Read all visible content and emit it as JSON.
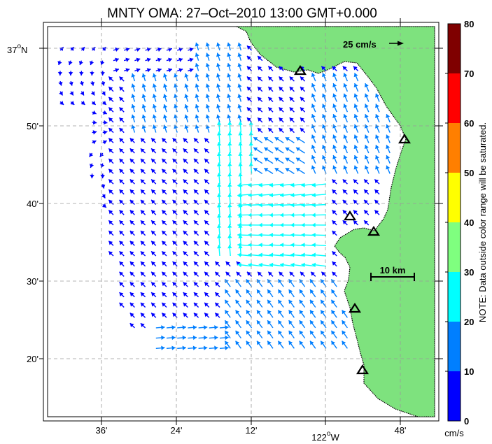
{
  "title": "MNTY OMA: 27–Oct–2010 13:00 GMT+0.000",
  "lat_labels": [
    {
      "text": "37°N",
      "main": "37",
      "deg": "o",
      "suffix": "N"
    },
    {
      "text": "50'"
    },
    {
      "text": "40'"
    },
    {
      "text": "30'"
    },
    {
      "text": "20'"
    }
  ],
  "lon_labels": [
    {
      "text": "36'"
    },
    {
      "text": "24'"
    },
    {
      "text": "12'"
    },
    {
      "text": "122°W",
      "main": "122",
      "deg": "o",
      "suffix": "W"
    },
    {
      "text": "48'"
    }
  ],
  "reference_vector": {
    "label": "25 cm/s"
  },
  "scale_bar": {
    "label": "10 km"
  },
  "colorbar": {
    "tick_labels": [
      "80",
      "70",
      "60",
      "50",
      "40",
      "30",
      "20",
      "10",
      "0"
    ],
    "unit": "cm/s",
    "note": "NOTE: Data outside color range will be saturated.",
    "colors": [
      "#7f0000",
      "#ff0000",
      "#ff7f00",
      "#ffff00",
      "#7fff7f",
      "#00ffff",
      "#007fff",
      "#0000ff"
    ]
  },
  "land_color": "#7ee27e",
  "site_markers": 6
}
